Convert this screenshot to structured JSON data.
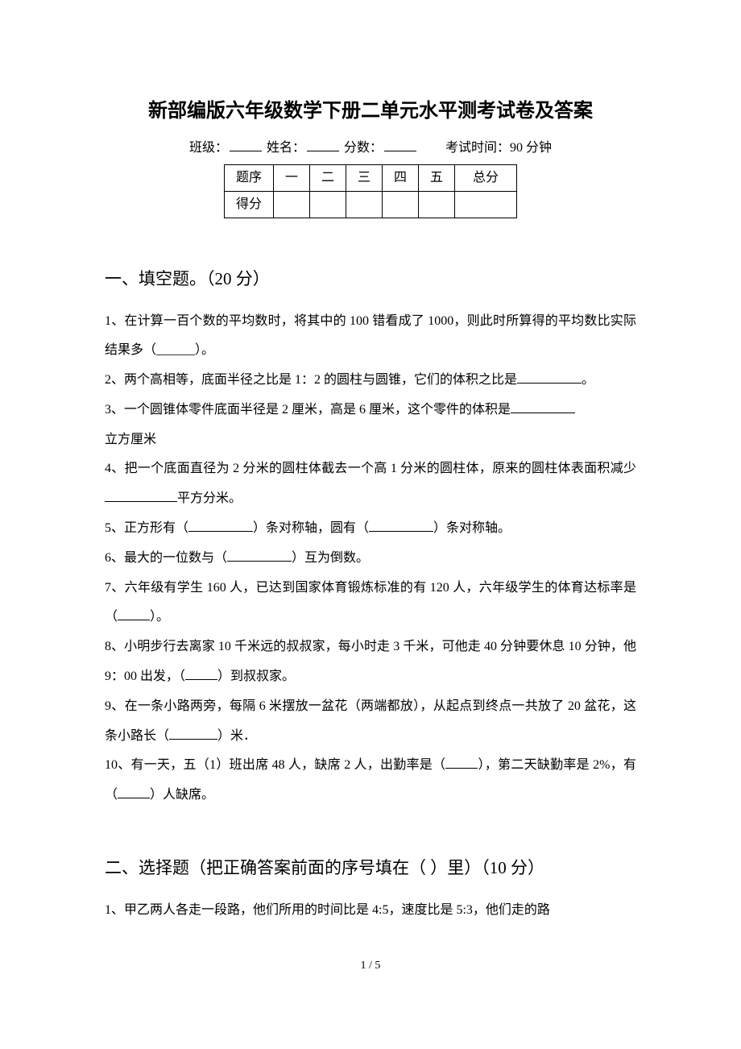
{
  "title": "新部编版六年级数学下册二单元水平测考试卷及答案",
  "meta": {
    "class_label": "班级：",
    "name_label": "姓名：",
    "score_label": "分数：",
    "time_label": "考试时间：90 分钟"
  },
  "score_table": {
    "headers": [
      "题序",
      "一",
      "二",
      "三",
      "四",
      "五",
      "总分"
    ],
    "row_label": "得分"
  },
  "section1": {
    "heading": "一、填空题。（20 分）",
    "q1": "1、在计算一百个数的平均数时，将其中的 100 错看成了 1000，则此时所算得的平均数比实际结果多（______）。",
    "q2a": "2、两个高相等，底面半径之比是 1：2 的圆柱与圆锥，它们的体积之比是",
    "q2b": "。",
    "q3a": "3、一个圆锥体零件底面半径是 2 厘米，高是 6 厘米，这个零件的体积是",
    "q3b": "立方厘米",
    "q4a": "4、把一个底面直径为 2 分米的圆柱体截去一个高 1 分米的圆柱体，原来的圆柱体表面积减少",
    "q4b": "平方分米。",
    "q5a": "5、正方形有（",
    "q5b": "）条对称轴，圆有（",
    "q5c": "）条对称轴。",
    "q6a": "6、最大的一位数与（",
    "q6b": "）互为倒数。",
    "q7a": "7、六年级有学生 160 人，已达到国家体育锻炼标准的有 120 人，六年级学生的体育达标率是（",
    "q7b": "）。",
    "q8a": "8、小明步行去离家 10 千米远的叔叔家，每小时走 3 千米，可他走 40 分钟要休息 10 分钟，他 9：00 出发，（",
    "q8b": "）到叔叔家。",
    "q9a": "9、在一条小路两旁，每隔 6 米摆放一盆花（两端都放），从起点到终点一共放了 20 盆花，这条小路长（",
    "q9b": "）米．",
    "q10a": "10、有一天，五（1）班出席 48 人，缺席 2 人，出勤率是（",
    "q10b": "），第二天缺勤率是 2%，有（",
    "q10c": "）人缺席。"
  },
  "section2": {
    "heading": "二、选择题（把正确答案前面的序号填在（ ）里）（10 分）",
    "q1": "1、甲乙两人各走一段路，他们所用的时间比是 4:5，速度比是 5:3，他们走的路"
  },
  "page_number": "1 / 5"
}
